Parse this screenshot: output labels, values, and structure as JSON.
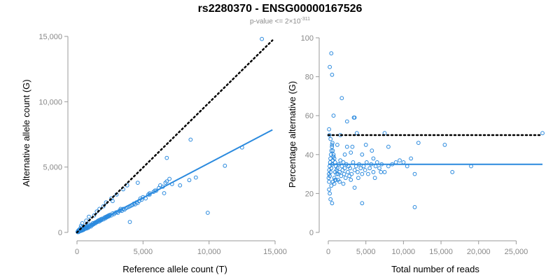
{
  "chart_data": {
    "title": "rs2280370 - ENSG00000167526",
    "subtitle": {
      "prefix": "p-value <= 2",
      "times": "×",
      "base": "10",
      "exponent": "-311"
    },
    "colors": {
      "points": "#2b8ade",
      "fit": "#2b8ade",
      "expected": "#000000"
    },
    "panels": [
      {
        "id": "left",
        "type": "scatter",
        "xlabel": "Reference allele count (T)",
        "ylabel": "Alternative allele count (G)",
        "xlim": [
          0,
          15000
        ],
        "ylim": [
          0,
          15000
        ],
        "xticks": [
          0,
          5000,
          10000,
          15000
        ],
        "xtick_labels": [
          "0",
          "5,000",
          "10,000",
          "15,000"
        ],
        "yticks": [
          0,
          5000,
          10000,
          15000
        ],
        "ytick_labels": [
          "0",
          "5,000",
          "10,000",
          "15,000"
        ],
        "fit_line": {
          "x": [
            0,
            14800
          ],
          "y": [
            0,
            7850
          ]
        },
        "expected_line": {
          "x": [
            0,
            14800
          ],
          "y": [
            0,
            14700
          ]
        },
        "points": [
          [
            40,
            50
          ],
          [
            60,
            20
          ],
          [
            80,
            120
          ],
          [
            100,
            60
          ],
          [
            120,
            30
          ],
          [
            150,
            200
          ],
          [
            160,
            100
          ],
          [
            190,
            80
          ],
          [
            200,
            150
          ],
          [
            230,
            120
          ],
          [
            250,
            300
          ],
          [
            260,
            200
          ],
          [
            300,
            120
          ],
          [
            320,
            180
          ],
          [
            350,
            250
          ],
          [
            380,
            400
          ],
          [
            400,
            150
          ],
          [
            420,
            280
          ],
          [
            450,
            220
          ],
          [
            480,
            300
          ],
          [
            500,
            200
          ],
          [
            520,
            350
          ],
          [
            560,
            250
          ],
          [
            600,
            400
          ],
          [
            620,
            280
          ],
          [
            650,
            330
          ],
          [
            700,
            450
          ],
          [
            720,
            300
          ],
          [
            750,
            380
          ],
          [
            800,
            500
          ],
          [
            850,
            350
          ],
          [
            880,
            420
          ],
          [
            900,
            600
          ],
          [
            950,
            480
          ],
          [
            1000,
            520
          ],
          [
            1050,
            450
          ],
          [
            1100,
            600
          ],
          [
            1150,
            550
          ],
          [
            1200,
            700
          ],
          [
            1250,
            620
          ],
          [
            1300,
            680
          ],
          [
            1350,
            750
          ],
          [
            1400,
            700
          ],
          [
            1450,
            800
          ],
          [
            1500,
            780
          ],
          [
            1550,
            850
          ],
          [
            1600,
            900
          ],
          [
            1650,
            820
          ],
          [
            1700,
            950
          ],
          [
            1750,
            880
          ],
          [
            1800,
            1000
          ],
          [
            1850,
            950
          ],
          [
            1900,
            1050
          ],
          [
            2000,
            1000
          ],
          [
            2050,
            1100
          ],
          [
            2100,
            1150
          ],
          [
            2150,
            1080
          ],
          [
            2200,
            1200
          ],
          [
            2250,
            1150
          ],
          [
            2300,
            1250
          ],
          [
            2350,
            1200
          ],
          [
            2400,
            1300
          ],
          [
            2450,
            1250
          ],
          [
            2500,
            1350
          ],
          [
            2600,
            1300
          ],
          [
            2700,
            1450
          ],
          [
            2800,
            1400
          ],
          [
            2900,
            1500
          ],
          [
            3000,
            1550
          ],
          [
            3100,
            1500
          ],
          [
            3200,
            1650
          ],
          [
            3300,
            1700
          ],
          [
            3400,
            1650
          ],
          [
            3500,
            1800
          ],
          [
            3600,
            1750
          ],
          [
            3700,
            1850
          ],
          [
            3800,
            1900
          ],
          [
            3900,
            1950
          ],
          [
            4000,
            2000
          ],
          [
            4100,
            2050
          ],
          [
            4200,
            2100
          ],
          [
            4300,
            2200
          ],
          [
            4400,
            2150
          ],
          [
            4500,
            2300
          ],
          [
            4600,
            2250
          ],
          [
            4700,
            2400
          ],
          [
            4800,
            2600
          ],
          [
            4900,
            2500
          ],
          [
            5000,
            2700
          ],
          [
            5200,
            2600
          ],
          [
            5400,
            2900
          ],
          [
            5500,
            3000
          ],
          [
            5800,
            3100
          ],
          [
            6000,
            3200
          ],
          [
            6200,
            3400
          ],
          [
            6300,
            3600
          ],
          [
            6500,
            3500
          ],
          [
            6700,
            3800
          ],
          [
            6800,
            3900
          ],
          [
            7200,
            3700
          ],
          [
            7800,
            3600
          ],
          [
            8500,
            4000
          ],
          [
            9000,
            4200
          ],
          [
            11200,
            5100
          ],
          [
            12500,
            6500
          ],
          [
            14000,
            14800
          ],
          [
            8600,
            7100
          ],
          [
            6800,
            5700
          ],
          [
            3500,
            3300
          ],
          [
            4600,
            3800
          ],
          [
            3800,
            3600
          ],
          [
            2000,
            2000
          ],
          [
            1700,
            1800
          ],
          [
            1300,
            1300
          ],
          [
            900,
            1200
          ],
          [
            700,
            900
          ],
          [
            3000,
            2900
          ],
          [
            2600,
            2600
          ],
          [
            9900,
            1500
          ],
          [
            4000,
            800
          ],
          [
            1500,
            1600
          ],
          [
            2200,
            2300
          ],
          [
            2700,
            2400
          ],
          [
            5500,
            2900
          ],
          [
            6600,
            3000
          ],
          [
            400,
            700
          ],
          [
            300,
            500
          ],
          [
            5900,
            3200
          ],
          [
            7000,
            4100
          ],
          [
            3300,
            1800
          ]
        ]
      },
      {
        "id": "right",
        "type": "scatter",
        "xlabel": "Total number of reads",
        "ylabel": "Percentage alternative (G)",
        "xlim": [
          0,
          28500
        ],
        "ylim": [
          0,
          100
        ],
        "xticks": [
          0,
          5000,
          10000,
          15000,
          20000,
          25000
        ],
        "xtick_labels": [
          "0",
          "5,000",
          "10,000",
          "15,000",
          "20,000",
          "25,000"
        ],
        "yticks": [
          0,
          20,
          40,
          60,
          80,
          100
        ],
        "ytick_labels": [
          "0",
          "20",
          "40",
          "60",
          "80",
          "100"
        ],
        "fit_line": {
          "x": [
            0,
            28500
          ],
          "y": [
            35,
            35
          ]
        },
        "expected_line": {
          "x": [
            0,
            28500
          ],
          "y": [
            50,
            50
          ]
        },
        "points": [
          [
            200,
            85
          ],
          [
            400,
            92
          ],
          [
            500,
            81
          ],
          [
            700,
            60
          ],
          [
            1800,
            69
          ],
          [
            2500,
            57
          ],
          [
            3400,
            59
          ],
          [
            3500,
            59
          ],
          [
            3200,
            44
          ],
          [
            3000,
            41
          ],
          [
            100,
            53
          ],
          [
            150,
            50
          ],
          [
            300,
            48
          ],
          [
            500,
            45
          ],
          [
            600,
            42
          ],
          [
            700,
            40
          ],
          [
            800,
            38
          ],
          [
            900,
            36
          ],
          [
            1000,
            34
          ],
          [
            1100,
            32
          ],
          [
            1200,
            33
          ],
          [
            1300,
            30
          ],
          [
            1400,
            35
          ],
          [
            1500,
            31
          ],
          [
            1600,
            37
          ],
          [
            1700,
            29
          ],
          [
            1800,
            34
          ],
          [
            1900,
            32
          ],
          [
            2000,
            36
          ],
          [
            2100,
            30
          ],
          [
            2200,
            33
          ],
          [
            2300,
            28
          ],
          [
            2400,
            35
          ],
          [
            2600,
            31
          ],
          [
            2700,
            34
          ],
          [
            2800,
            29
          ],
          [
            2900,
            33
          ],
          [
            3100,
            30
          ],
          [
            3300,
            36
          ],
          [
            3500,
            32
          ],
          [
            3700,
            34
          ],
          [
            3900,
            31
          ],
          [
            4100,
            35
          ],
          [
            4300,
            33
          ],
          [
            4500,
            30
          ],
          [
            4700,
            34
          ],
          [
            4900,
            32
          ],
          [
            5100,
            36
          ],
          [
            5300,
            30
          ],
          [
            5500,
            33
          ],
          [
            5700,
            35
          ],
          [
            6000,
            31
          ],
          [
            6300,
            34
          ],
          [
            6500,
            36
          ],
          [
            6800,
            33
          ],
          [
            7100,
            35
          ],
          [
            7500,
            31
          ],
          [
            8000,
            34
          ],
          [
            8500,
            35
          ],
          [
            9000,
            36
          ],
          [
            9500,
            37
          ],
          [
            10000,
            36
          ],
          [
            10500,
            34
          ],
          [
            11000,
            38
          ],
          [
            11500,
            30
          ],
          [
            12000,
            46
          ],
          [
            15500,
            45
          ],
          [
            16500,
            31
          ],
          [
            19000,
            34
          ],
          [
            28500,
            51
          ],
          [
            11500,
            13
          ],
          [
            4500,
            15
          ],
          [
            500,
            15
          ],
          [
            300,
            17
          ],
          [
            200,
            20
          ],
          [
            100,
            22
          ],
          [
            400,
            24
          ],
          [
            600,
            26
          ],
          [
            800,
            28
          ],
          [
            1000,
            27
          ],
          [
            50,
            28
          ],
          [
            80,
            30
          ],
          [
            120,
            32
          ],
          [
            180,
            34
          ],
          [
            240,
            36
          ],
          [
            280,
            38
          ],
          [
            350,
            40
          ],
          [
            420,
            42
          ],
          [
            480,
            44
          ],
          [
            550,
            46
          ],
          [
            100,
            26
          ],
          [
            200,
            29
          ],
          [
            300,
            31
          ],
          [
            400,
            33
          ],
          [
            500,
            35
          ],
          [
            600,
            37
          ],
          [
            700,
            39
          ],
          [
            800,
            25
          ],
          [
            900,
            27
          ],
          [
            1100,
            30
          ],
          [
            1300,
            27
          ],
          [
            1500,
            26
          ],
          [
            2000,
            25
          ],
          [
            3500,
            23
          ],
          [
            4000,
            28
          ],
          [
            6000,
            38
          ],
          [
            7500,
            51
          ],
          [
            8000,
            44
          ],
          [
            5000,
            45
          ],
          [
            4500,
            40
          ],
          [
            2500,
            44
          ],
          [
            3000,
            27
          ],
          [
            1200,
            45
          ],
          [
            3800,
            51
          ],
          [
            5800,
            42
          ],
          [
            6200,
            28
          ],
          [
            7000,
            31
          ],
          [
            2200,
            40
          ],
          [
            1600,
            50
          ],
          [
            900,
            31
          ]
        ]
      }
    ]
  }
}
